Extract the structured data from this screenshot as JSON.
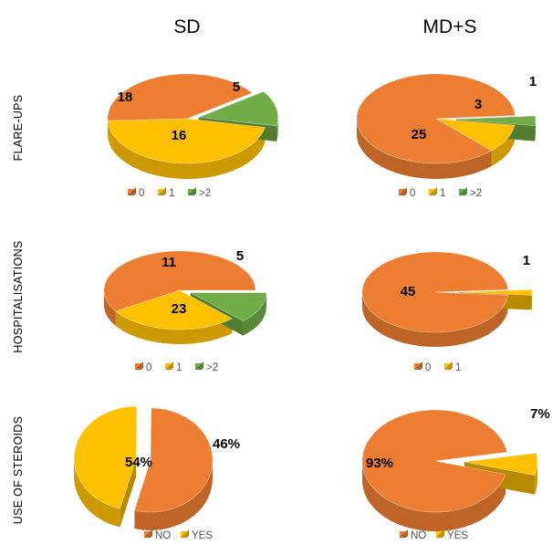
{
  "colors": {
    "0": "#ED7D31",
    "1": "#FFC000",
    ">2": "#70AD47",
    "NO": "#ED7D31",
    "YES": "#FFC000"
  },
  "column_titles": [
    "SD",
    "MD+S"
  ],
  "row_labels": [
    "FLARE-UPS",
    "HOSPITALISATIONS",
    "USE OF STEROIDS"
  ],
  "chart_data": [
    {
      "type": "pie",
      "title": "",
      "row": "FLARE-UPS",
      "column": "SD",
      "slices": [
        {
          "label": "0",
          "value": 16,
          "display": "16",
          "exploded": false
        },
        {
          "label": "1",
          "value": 18,
          "display": "18",
          "exploded": false
        },
        {
          "label": ">2",
          "value": 5,
          "display": "5",
          "exploded": true
        }
      ],
      "legend": [
        "0",
        "1",
        ">2"
      ],
      "legend_position": "bottom"
    },
    {
      "type": "pie",
      "title": "",
      "row": "FLARE-UPS",
      "column": "MD+S",
      "slices": [
        {
          "label": "0",
          "value": 25,
          "display": "25",
          "exploded": false
        },
        {
          "label": "1",
          "value": 3,
          "display": "3",
          "exploded": false
        },
        {
          "label": ">2",
          "value": 1,
          "display": "1",
          "exploded": true
        }
      ],
      "legend": [
        "0",
        "1",
        ">2"
      ],
      "legend_position": "bottom"
    },
    {
      "type": "pie",
      "title": "",
      "row": "HOSPITALISATIONS",
      "column": "SD",
      "slices": [
        {
          "label": "0",
          "value": 23,
          "display": "23",
          "exploded": false
        },
        {
          "label": "1",
          "value": 11,
          "display": "11",
          "exploded": false
        },
        {
          "label": ">2",
          "value": 5,
          "display": "5",
          "exploded": true
        }
      ],
      "legend": [
        "0",
        "1",
        ">2"
      ],
      "legend_position": "bottom"
    },
    {
      "type": "pie",
      "title": "",
      "row": "HOSPITALISATIONS",
      "column": "MD+S",
      "slices": [
        {
          "label": "0",
          "value": 45,
          "display": "45",
          "exploded": false
        },
        {
          "label": "1",
          "value": 1,
          "display": "1",
          "exploded": true
        }
      ],
      "legend": [
        "0",
        "1"
      ],
      "legend_position": "bottom"
    },
    {
      "type": "pie",
      "title": "",
      "row": "USE OF STEROIDS",
      "column": "SD",
      "slices": [
        {
          "label": "NO",
          "value": 54,
          "display": "54%",
          "exploded": false
        },
        {
          "label": "YES",
          "value": 46,
          "display": "46%",
          "exploded": true
        }
      ],
      "legend": [
        "NO",
        "YES"
      ],
      "legend_position": "bottom"
    },
    {
      "type": "pie",
      "title": "",
      "row": "USE OF STEROIDS",
      "column": "MD+S",
      "slices": [
        {
          "label": "NO",
          "value": 93,
          "display": "93%",
          "exploded": false
        },
        {
          "label": "YES",
          "value": 7,
          "display": "7%",
          "exploded": true
        }
      ],
      "legend": [
        "NO",
        "YES"
      ],
      "legend_position": "bottom"
    }
  ]
}
